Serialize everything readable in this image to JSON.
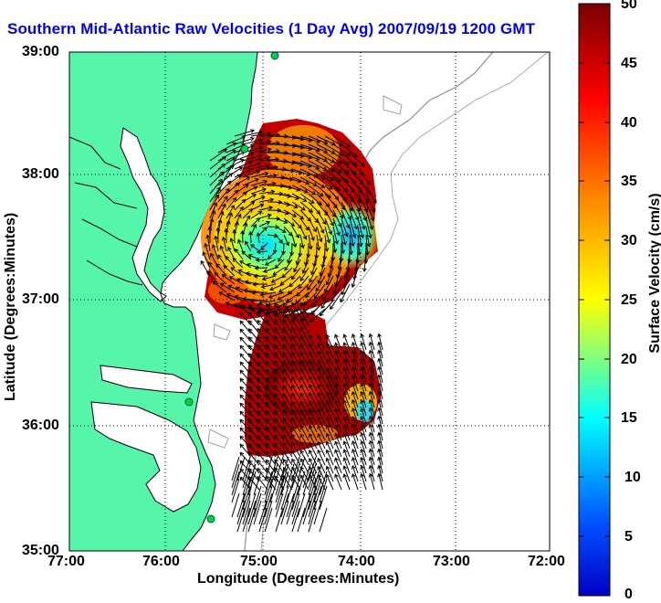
{
  "title": "Southern Mid-Atlantic Raw Velocities (1 Day Avg) 2007/09/19 1200 GMT",
  "map": {
    "xlabel": "Longitude (Degrees:Minutes)",
    "ylabel": "Latitude (Degrees:Minutes)",
    "x_ticks": [
      "77:00",
      "76:00",
      "75:00",
      "74:00",
      "73:00",
      "72:00"
    ],
    "y_ticks": [
      "39:00",
      "38:00",
      "37:00",
      "36:00",
      "35:00"
    ],
    "lon_range": [
      -77.0,
      -72.0
    ],
    "lat_range": [
      35.0,
      39.0
    ],
    "grid": "dotted",
    "land_color": "#55f5aa",
    "ocean_color": "#ffffff"
  },
  "colorbar": {
    "label": "Surface Velocity (cm/s)",
    "ticks": [
      "0",
      "5",
      "10",
      "15",
      "20",
      "25",
      "30",
      "35",
      "40",
      "45",
      "50"
    ],
    "range": [
      0,
      50
    ],
    "colormap": "jet"
  }
}
